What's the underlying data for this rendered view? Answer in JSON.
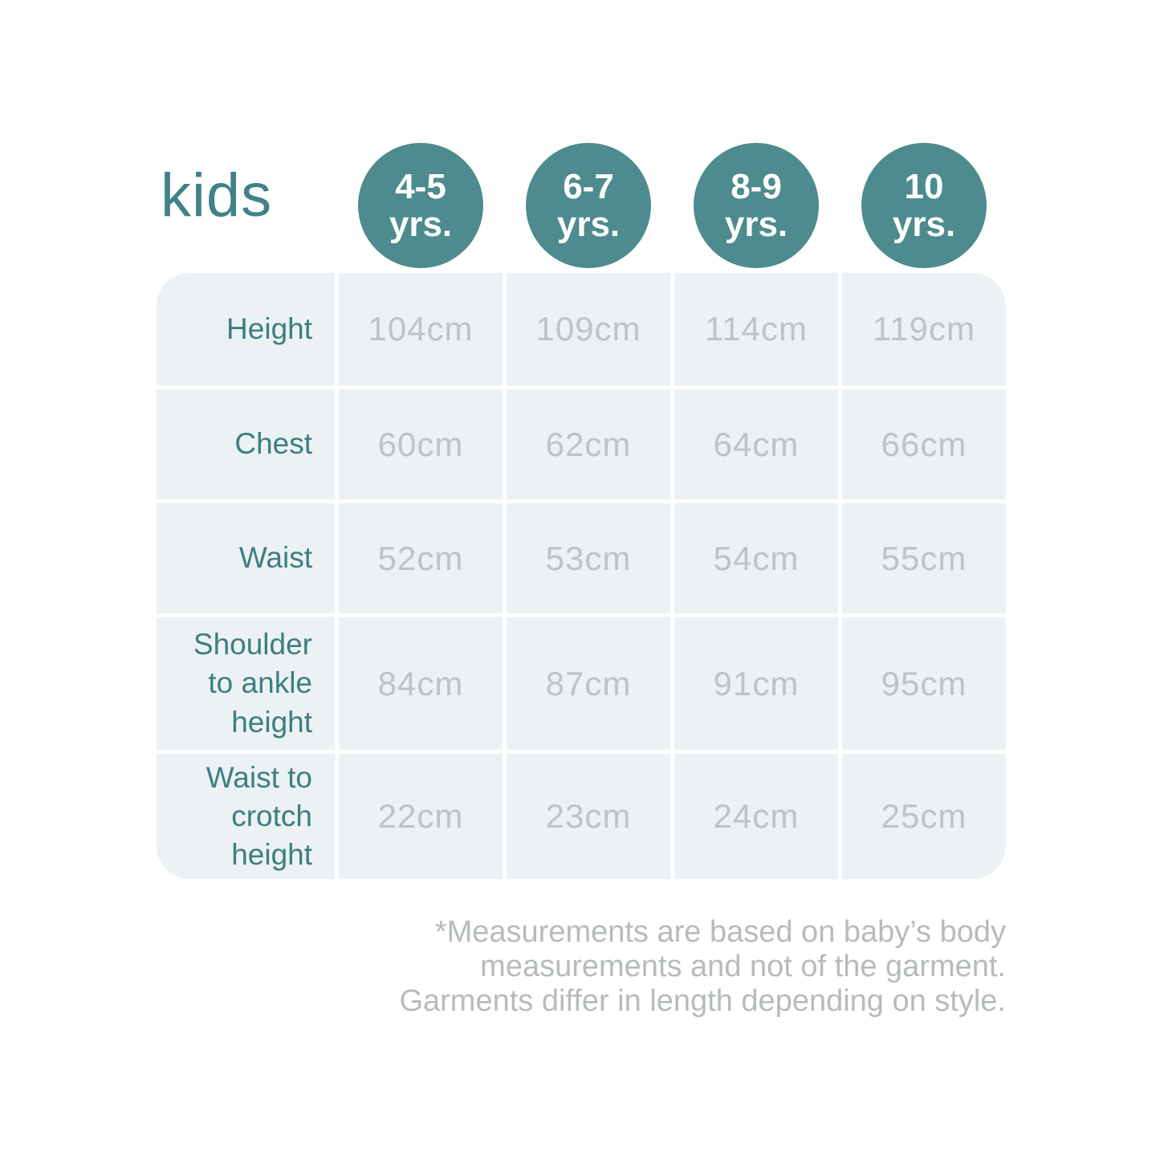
{
  "colors": {
    "accent_teal": "#4d8b8e",
    "title_teal": "#3f8287",
    "label_teal": "#3d7e82",
    "value_gray": "#bdc3c6",
    "footnote_gray": "#b6bbbd",
    "cell_background": "#ecf1f3",
    "page_background": "#ffffff"
  },
  "header": {
    "title": "kids",
    "badges": [
      {
        "line1": "4-5",
        "line2": "yrs."
      },
      {
        "line1": "6-7",
        "line2": "yrs."
      },
      {
        "line1": "8-9",
        "line2": "yrs."
      },
      {
        "line1": "10",
        "line2": "yrs."
      }
    ]
  },
  "table": {
    "rows": [
      {
        "label": "Height",
        "values": [
          "104cm",
          "109cm",
          "114cm",
          "119cm"
        ]
      },
      {
        "label": "Chest",
        "values": [
          "60cm",
          "62cm",
          "64cm",
          "66cm"
        ]
      },
      {
        "label": "Waist",
        "values": [
          "52cm",
          "53cm",
          "54cm",
          "55cm"
        ]
      },
      {
        "label": "Shoulder to ankle height",
        "values": [
          "84cm",
          "87cm",
          "91cm",
          "95cm"
        ]
      },
      {
        "label": "Waist to crotch height",
        "values": [
          "22cm",
          "23cm",
          "24cm",
          "25cm"
        ]
      }
    ]
  },
  "footnote": {
    "lines": [
      "*Measurements are based on baby’s body",
      "measurements and not of the garment.",
      "Garments differ in length depending on style."
    ]
  },
  "chart_data": {
    "type": "table",
    "title": "kids",
    "columns": [
      "4-5 yrs.",
      "6-7 yrs.",
      "8-9 yrs.",
      "10 yrs."
    ],
    "row_labels": [
      "Height",
      "Chest",
      "Waist",
      "Shoulder to ankle height",
      "Waist to crotch height"
    ],
    "values_cm": [
      [
        104,
        109,
        114,
        119
      ],
      [
        60,
        62,
        64,
        66
      ],
      [
        52,
        53,
        54,
        55
      ],
      [
        84,
        87,
        91,
        95
      ],
      [
        22,
        23,
        24,
        25
      ]
    ],
    "unit": "cm",
    "footnote": "*Measurements are based on baby’s body measurements and not of the garment. Garments differ in length depending on style."
  }
}
